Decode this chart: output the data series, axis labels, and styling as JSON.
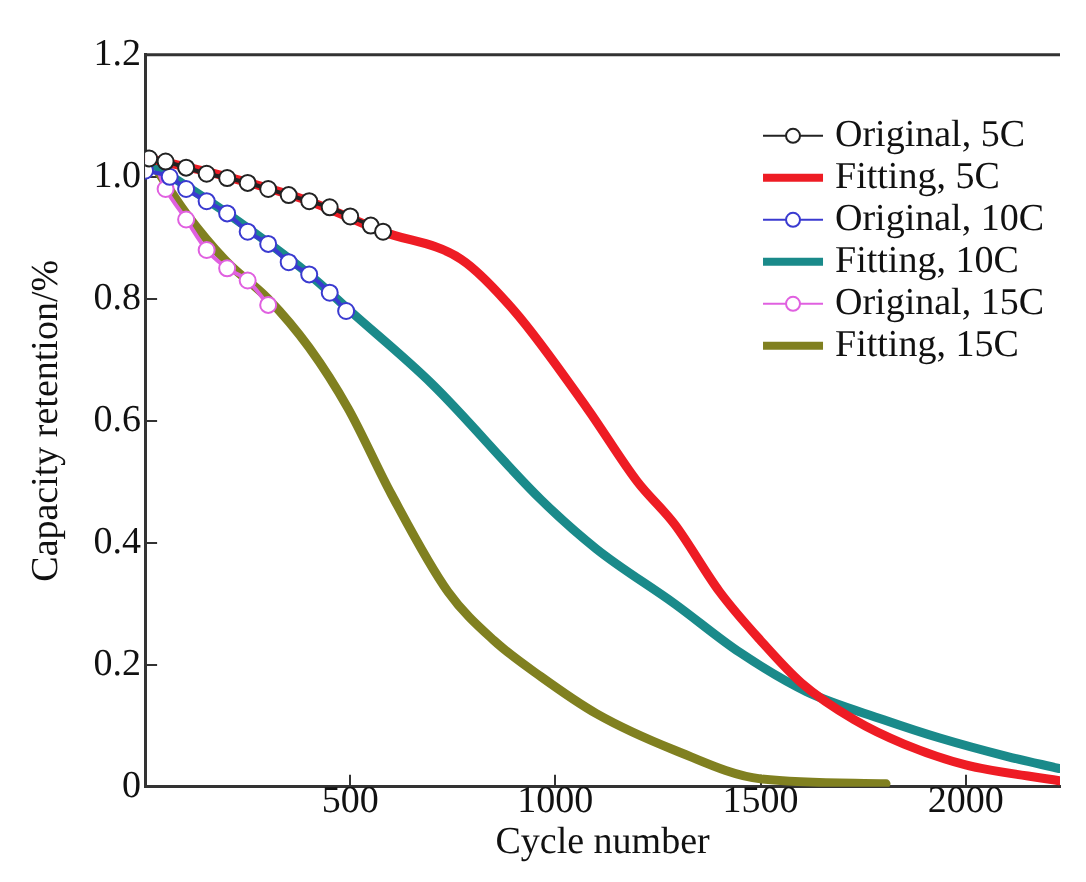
{
  "chart_data": {
    "type": "line",
    "xlabel": "Cycle number",
    "ylabel": "Capacity retention/%",
    "xlim": [
      0,
      2230
    ],
    "ylim": [
      0,
      1.2
    ],
    "xticks": [
      500,
      1000,
      1500,
      2000
    ],
    "yticks": [
      0,
      0.2,
      0.4,
      0.6,
      0.8,
      {
        "value": 1,
        "label": "1.0"
      },
      1.2
    ],
    "grid": false,
    "legend": "top right",
    "line_style": "solid",
    "series": [
      {
        "name": "Original, 5C",
        "color": "#222222",
        "marker": "circle",
        "x": [
          10,
          50,
          100,
          150,
          200,
          250,
          300,
          350,
          400,
          450,
          500,
          550,
          580
        ],
        "values": [
          1.03,
          1.025,
          1.015,
          1.005,
          0.998,
          0.99,
          0.98,
          0.97,
          0.96,
          0.95,
          0.935,
          0.92,
          0.91
        ]
      },
      {
        "name": "Fitting, 5C",
        "color": "#ee1c24",
        "marker": "none",
        "x": [
          10,
          200,
          400,
          580,
          770,
          900,
          1078,
          1200,
          1291,
          1400,
          1500,
          1600,
          1728,
          1850,
          2000,
          2228
        ],
        "values": [
          1.03,
          1.0,
          0.96,
          0.91,
          0.865,
          0.78,
          0.62,
          0.5,
          0.43,
          0.32,
          0.24,
          0.17,
          0.11,
          0.07,
          0.036,
          0.01
        ]
      },
      {
        "name": "Original, 10C",
        "color": "#3a3ad0",
        "marker": "circle",
        "x": [
          0,
          60,
          100,
          150,
          200,
          250,
          300,
          350,
          400,
          450,
          490
        ],
        "values": [
          1.01,
          1.0,
          0.98,
          0.96,
          0.94,
          0.91,
          0.89,
          0.86,
          0.84,
          0.81,
          0.78
        ]
      },
      {
        "name": "Fitting, 10C",
        "color": "#1a8a8a",
        "marker": "none",
        "x": [
          20,
          200,
          400,
          500,
          700,
          966,
          1100,
          1291,
          1450,
          1612,
          1800,
          1937,
          2100,
          2228
        ],
        "values": [
          1.02,
          0.94,
          0.84,
          0.78,
          0.66,
          0.47,
          0.39,
          0.3,
          0.22,
          0.156,
          0.11,
          0.08,
          0.05,
          0.03
        ]
      },
      {
        "name": "Original, 15C",
        "color": "#e060e0",
        "marker": "circle",
        "x": [
          0,
          20,
          50,
          100,
          150,
          200,
          250,
          300
        ],
        "values": [
          1.02,
          1.02,
          0.98,
          0.93,
          0.88,
          0.85,
          0.83,
          0.79
        ]
      },
      {
        "name": "Fitting, 15C",
        "color": "#808020",
        "marker": "none",
        "x": [
          20,
          100,
          200,
          300,
          400,
          495,
          600,
          738,
          850,
          966,
          1100,
          1291,
          1500,
          1806
        ],
        "values": [
          1.02,
          0.94,
          0.86,
          0.8,
          0.72,
          0.62,
          0.48,
          0.32,
          0.24,
          0.18,
          0.12,
          0.06,
          0.013,
          0.005
        ]
      }
    ]
  }
}
